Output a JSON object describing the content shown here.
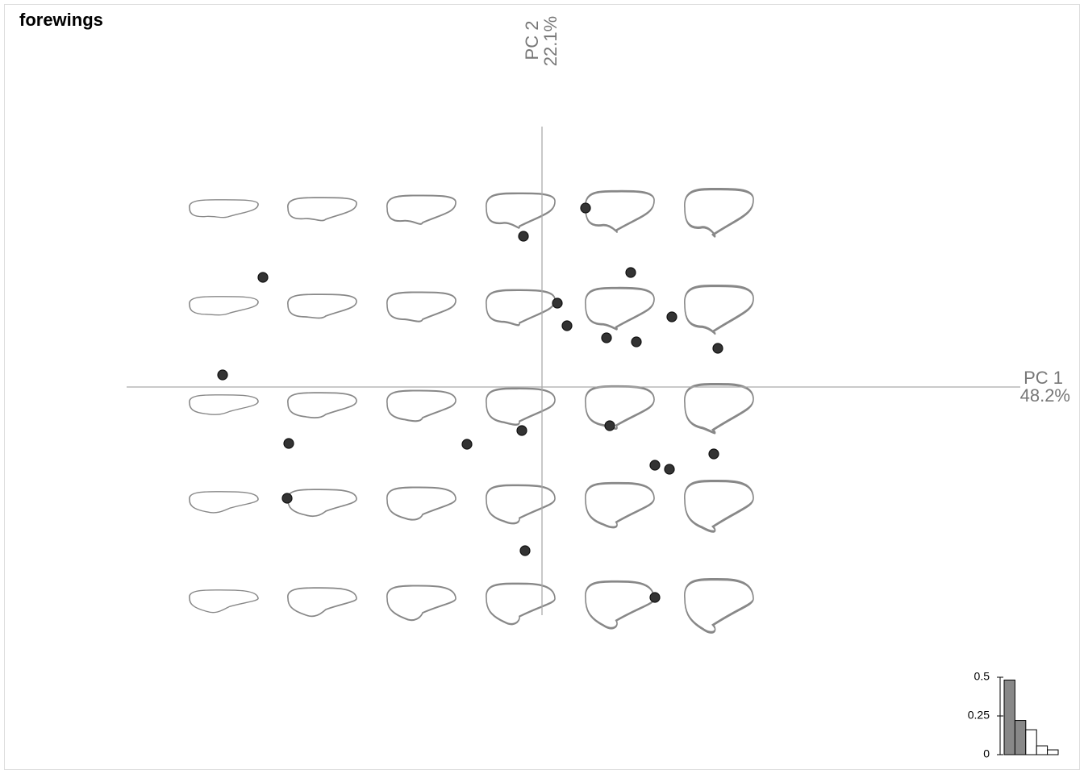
{
  "chart_data": {
    "type": "scatter",
    "title": "forewings",
    "x_label": "PC 1",
    "x_variance": "48.2%",
    "y_label": "PC 2",
    "y_variance": "22.1%",
    "xlim": [
      -5.15,
      5.93
    ],
    "ylim": [
      -2.83,
      3.23
    ],
    "color": "#333333",
    "x": [
      0.54,
      -0.23,
      -3.46,
      1.1,
      0.19,
      0.31,
      0.8,
      1.17,
      1.61,
      2.18,
      -3.96,
      -3.14,
      -0.93,
      -0.25,
      0.84,
      1.4,
      1.58,
      2.13,
      -3.16,
      -0.21,
      1.4
    ],
    "values": [
      2.22,
      1.87,
      1.36,
      1.42,
      1.04,
      0.76,
      0.61,
      0.56,
      0.87,
      0.48,
      0.15,
      -0.7,
      -0.71,
      -0.54,
      -0.48,
      -0.97,
      -1.02,
      -0.83,
      -1.38,
      -2.03,
      -2.61
    ],
    "scree": {
      "type": "bar",
      "values": [
        0.482,
        0.221,
        0.161,
        0.057,
        0.031
      ],
      "colors": [
        "#888888",
        "#888888",
        "#ffffff",
        "#ffffff",
        "#ffffff"
      ],
      "ylim": [
        0,
        0.5
      ],
      "yticks": [
        0,
        0.25,
        0.5
      ]
    }
  }
}
